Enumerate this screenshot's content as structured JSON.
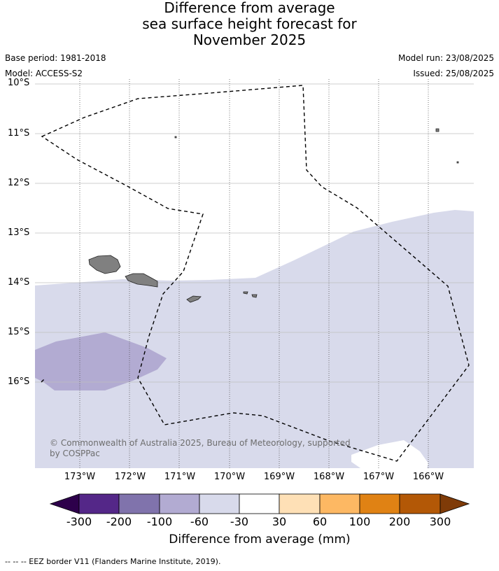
{
  "title": {
    "line1": "Difference from average",
    "line2": "sea surface height forecast for",
    "line3": "November 2025"
  },
  "meta": {
    "base_period": "Base period: 1981-2018",
    "model": "Model: ACCESS-S2",
    "model_run": "Model run: 23/08/2025",
    "issued": "Issued: 25/08/2025"
  },
  "map": {
    "lat_labels": [
      "10°S",
      "11°S",
      "12°S",
      "13°S",
      "14°S",
      "15°S",
      "16°S"
    ],
    "lon_labels": [
      "173°W",
      "172°W",
      "171°W",
      "170°W",
      "169°W",
      "168°W",
      "167°W",
      "166°W"
    ],
    "land_color": "#808080",
    "credit_line1": "© Commonwealth of Australia 2025, Bureau of Meteorology, supported",
    "credit_line2": "by COSPPac",
    "eez_style": "dashed black line"
  },
  "colorbar": {
    "title": "Difference from average (mm)",
    "ticks": [
      "-300",
      "-200",
      "-100",
      "-60",
      "-30",
      "30",
      "60",
      "100",
      "200",
      "300"
    ],
    "under_color": "#2d004b",
    "over_color": "#7f3b08",
    "colors": [
      "#542788",
      "#8073ac",
      "#b2abd2",
      "#d8daeb",
      "#ffffff",
      "#fee0b6",
      "#fdb863",
      "#e08214",
      "#b35806"
    ]
  },
  "footnote": "--  --  -- EEZ border V11 (Flanders Marine Institute, 2019)."
}
